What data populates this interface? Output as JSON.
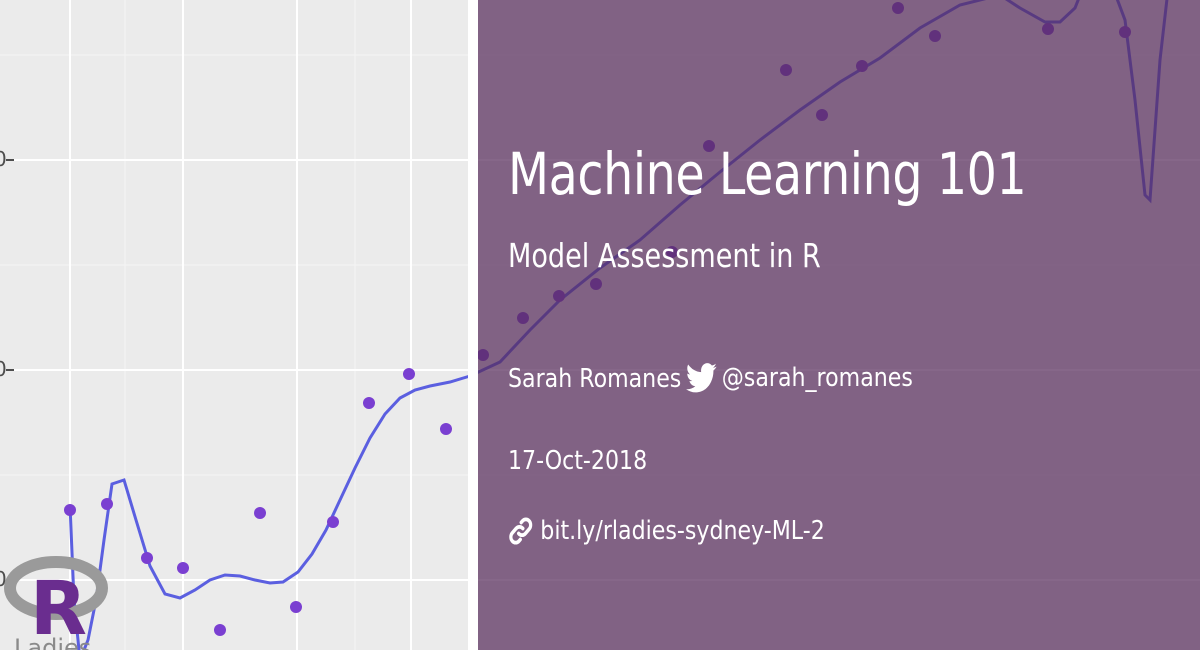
{
  "slide": {
    "title": "Machine Learning 101",
    "subtitle": "Model Assessment in R",
    "author": "Sarah Romanes",
    "twitter_handle": "@sarah_romanes",
    "date": "17-Oct-2018",
    "link": "bit.ly/rladies-sydney-ML-2"
  },
  "icons": {
    "twitter": "twitter-bird-icon",
    "link": "link-chain-icon",
    "logo": "rladies-r-logo"
  },
  "logo_text": "Ladies",
  "colors": {
    "overlay": "#6e4a78",
    "points": "#7a3fd1",
    "curve": "#5b5fe0",
    "panel": "#ebebeb"
  }
}
